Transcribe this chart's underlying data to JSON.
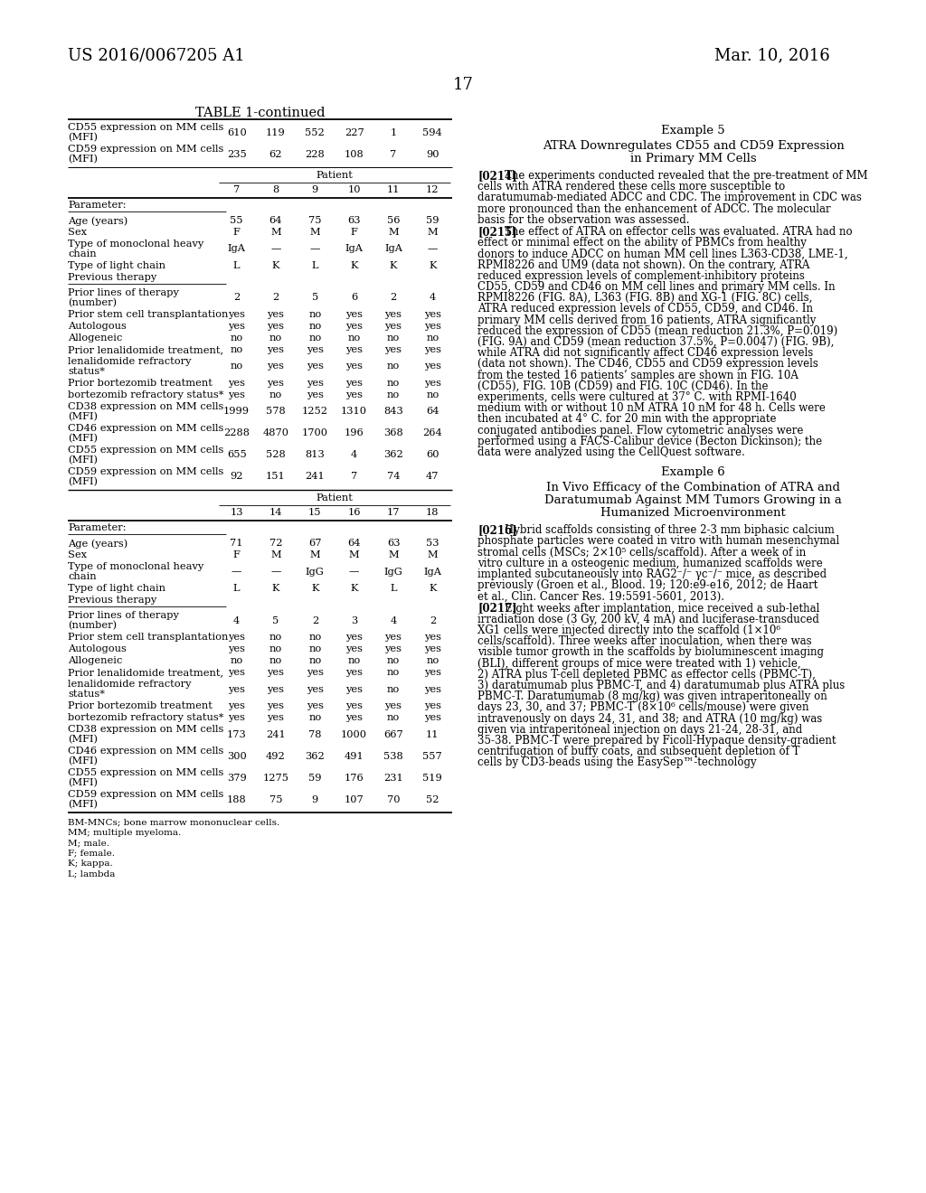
{
  "page_header_left": "US 2016/0067205 A1",
  "page_header_right": "Mar. 10, 2016",
  "page_number": "17",
  "table_title": "TABLE 1-continued",
  "table_top_rows": [
    {
      "param": "CD55 expression on MM cells\n(MFI)",
      "vals": [
        "610",
        "119",
        "552",
        "227",
        "1",
        "594"
      ]
    },
    {
      "param": "CD59 expression on MM cells\n(MFI)",
      "vals": [
        "235",
        "62",
        "228",
        "108",
        "7",
        "90"
      ]
    }
  ],
  "section1_patient_header": "Patient",
  "section1_col_headers": [
    "7",
    "8",
    "9",
    "10",
    "11",
    "12"
  ],
  "section1_rows": [
    {
      "param": "Parameter:",
      "vals": [
        "",
        "",
        "",
        "",
        "",
        ""
      ],
      "underline": true
    },
    {
      "param": "",
      "vals": [
        "",
        "",
        "",
        "",
        "",
        ""
      ],
      "spacer": true
    },
    {
      "param": "Age (years)",
      "vals": [
        "55",
        "64",
        "75",
        "63",
        "56",
        "59"
      ]
    },
    {
      "param": "Sex",
      "vals": [
        "F",
        "M",
        "M",
        "F",
        "M",
        "M"
      ]
    },
    {
      "param": "Type of monoclonal heavy\nchain",
      "vals": [
        "IgA",
        "—",
        "—",
        "IgA",
        "IgA",
        "—"
      ]
    },
    {
      "param": "Type of light chain",
      "vals": [
        "L",
        "K",
        "L",
        "K",
        "K",
        "K"
      ]
    },
    {
      "param": "Previous therapy",
      "vals": [
        "",
        "",
        "",
        "",
        "",
        ""
      ],
      "underline": true
    },
    {
      "param": "",
      "vals": [
        "",
        "",
        "",
        "",
        "",
        ""
      ],
      "spacer": true
    },
    {
      "param": "Prior lines of therapy\n(number)",
      "vals": [
        "2",
        "2",
        "5",
        "6",
        "2",
        "4"
      ]
    },
    {
      "param": "Prior stem cell transplantation",
      "vals": [
        "yes",
        "yes",
        "no",
        "yes",
        "yes",
        "yes"
      ]
    },
    {
      "param": "Autologous",
      "vals": [
        "yes",
        "yes",
        "no",
        "yes",
        "yes",
        "yes"
      ]
    },
    {
      "param": "Allogeneic",
      "vals": [
        "no",
        "no",
        "no",
        "no",
        "no",
        "no"
      ]
    },
    {
      "param": "Prior lenalidomide treatment,",
      "vals": [
        "no",
        "yes",
        "yes",
        "yes",
        "yes",
        "yes"
      ]
    },
    {
      "param": "lenalidomide refractory\nstatus*",
      "vals": [
        "no",
        "yes",
        "yes",
        "yes",
        "no",
        "yes"
      ]
    },
    {
      "param": "Prior bortezomib treatment",
      "vals": [
        "yes",
        "yes",
        "yes",
        "yes",
        "no",
        "yes"
      ]
    },
    {
      "param": "bortezomib refractory status*",
      "vals": [
        "yes",
        "no",
        "yes",
        "yes",
        "no",
        "no"
      ]
    },
    {
      "param": "CD38 expression on MM cells\n(MFI)",
      "vals": [
        "1999",
        "578",
        "1252",
        "1310",
        "843",
        "64"
      ]
    },
    {
      "param": "CD46 expression on MM cells\n(MFI)",
      "vals": [
        "2288",
        "4870",
        "1700",
        "196",
        "368",
        "264"
      ]
    },
    {
      "param": "CD55 expression on MM cells\n(MFI)",
      "vals": [
        "655",
        "528",
        "813",
        "4",
        "362",
        "60"
      ]
    },
    {
      "param": "CD59 expression on MM cells\n(MFI)",
      "vals": [
        "92",
        "151",
        "241",
        "7",
        "74",
        "47"
      ]
    }
  ],
  "section2_patient_header": "Patient",
  "section2_col_headers": [
    "13",
    "14",
    "15",
    "16",
    "17",
    "18"
  ],
  "section2_rows": [
    {
      "param": "Parameter:",
      "vals": [
        "",
        "",
        "",
        "",
        "",
        ""
      ],
      "underline": true
    },
    {
      "param": "",
      "vals": [
        "",
        "",
        "",
        "",
        "",
        ""
      ],
      "spacer": true
    },
    {
      "param": "Age (years)",
      "vals": [
        "71",
        "72",
        "67",
        "64",
        "63",
        "53"
      ]
    },
    {
      "param": "Sex",
      "vals": [
        "F",
        "M",
        "M",
        "M",
        "M",
        "M"
      ]
    },
    {
      "param": "Type of monoclonal heavy\nchain",
      "vals": [
        "—",
        "—",
        "IgG",
        "—",
        "IgG",
        "IgA"
      ]
    },
    {
      "param": "Type of light chain",
      "vals": [
        "L",
        "K",
        "K",
        "K",
        "L",
        "K"
      ]
    },
    {
      "param": "Previous therapy",
      "vals": [
        "",
        "",
        "",
        "",
        "",
        ""
      ],
      "underline": true
    },
    {
      "param": "",
      "vals": [
        "",
        "",
        "",
        "",
        "",
        ""
      ],
      "spacer": true
    },
    {
      "param": "Prior lines of therapy\n(number)",
      "vals": [
        "4",
        "5",
        "2",
        "3",
        "4",
        "2"
      ]
    },
    {
      "param": "Prior stem cell transplantation",
      "vals": [
        "yes",
        "no",
        "no",
        "yes",
        "yes",
        "yes"
      ]
    },
    {
      "param": "Autologous",
      "vals": [
        "yes",
        "no",
        "no",
        "yes",
        "yes",
        "yes"
      ]
    },
    {
      "param": "Allogeneic",
      "vals": [
        "no",
        "no",
        "no",
        "no",
        "no",
        "no"
      ]
    },
    {
      "param": "Prior lenalidomide treatment,",
      "vals": [
        "yes",
        "yes",
        "yes",
        "yes",
        "no",
        "yes"
      ]
    },
    {
      "param": "lenalidomide refractory\nstatus*",
      "vals": [
        "yes",
        "yes",
        "yes",
        "yes",
        "no",
        "yes"
      ]
    },
    {
      "param": "Prior bortezomib treatment",
      "vals": [
        "yes",
        "yes",
        "yes",
        "yes",
        "yes",
        "yes"
      ]
    },
    {
      "param": "bortezomib refractory status*",
      "vals": [
        "yes",
        "yes",
        "no",
        "yes",
        "no",
        "yes"
      ]
    },
    {
      "param": "CD38 expression on MM cells\n(MFI)",
      "vals": [
        "173",
        "241",
        "78",
        "1000",
        "667",
        "11"
      ]
    },
    {
      "param": "CD46 expression on MM cells\n(MFI)",
      "vals": [
        "300",
        "492",
        "362",
        "491",
        "538",
        "557"
      ]
    },
    {
      "param": "CD55 expression on MM cells\n(MFI)",
      "vals": [
        "379",
        "1275",
        "59",
        "176",
        "231",
        "519"
      ]
    },
    {
      "param": "CD59 expression on MM cells\n(MFI)",
      "vals": [
        "188",
        "75",
        "9",
        "107",
        "70",
        "52"
      ]
    }
  ],
  "footnotes": [
    "BM-MNCs; bone marrow mononuclear cells.",
    "MM; multiple myeloma.",
    "M; male.",
    "F; female.",
    "K; kappa.",
    "L; lambda"
  ],
  "right_title": "Example 5",
  "right_subtitle": "ATRA Downregulates CD55 and CD59 Expression\nin Primary MM Cells",
  "para0214_tag": "[0214]",
  "para0214_text": "The experiments conducted revealed that the pre-treatment of MM cells with ATRA rendered these cells more susceptible to daratumumab-mediated ADCC and CDC. The improvement in CDC was more pronounced than the enhancement of ADCC. The molecular basis for the observation was assessed.",
  "para0215_tag": "[0215]",
  "para0215_text": "The effect of ATRA on effector cells was evaluated. ATRA had no effect or minimal effect on the ability of PBMCs from healthy donors to induce ADCC on human MM cell lines L363-CD38, LME-1, RPMI8226 and UM9 (data not shown). On the contrary, ATRA reduced expression levels of complement-inhibitory proteins CD55, CD59 and CD46 on MM cell lines and primary MM cells. In RPMI8226 (FIG. 8A), L363 (FIG. 8B) and XG-1 (FIG. 8C) cells, ATRA reduced expression levels of CD55, CD59, and CD46. In primary MM cells derived from 16 patients, ATRA significantly reduced the expression of CD55 (mean reduction 21.3%, P=0.019) (FIG. 9A) and CD59 (mean reduction 37.5%, P=0.0047) (FIG. 9B), while ATRA did not significantly affect CD46 expression levels (data not shown). The CD46, CD55 and CD59 expression levels from the tested 16 patients’ samples are shown in FIG. 10A (CD55), FIG. 10B (CD59) and FIG. 10C (CD46). In the experiments, cells were cultured at 37° C. with RPMI-1640 medium with or without 10 nM ATRA 10 nM for 48 h. Cells were then incubated at 4° C. for 20 min with the appropriate conjugated antibodies panel. Flow cytometric analyses were performed using a FACS-Calibur device (Becton Dickinson); the data were analyzed using the CellQuest software.",
  "right_example6_title": "Example 6",
  "right_example6_subtitle": "In Vivo Efficacy of the Combination of ATRA and\nDaratumumab Against MM Tumors Growing in a\nHumanized Microenvironment",
  "para0216_tag": "[0216]",
  "para0216_text": "Hybrid scaffolds consisting of three 2-3 mm biphasic calcium phosphate particles were coated in vitro with human mesenchymal stromal cells (MSCs; 2×10⁵ cells/scaffold). After a week of in vitro culture in a osteogenic medium, humanized scaffolds were implanted subcutaneously into RAG2⁻/⁻ γc⁻/⁻ mice, as described previously (Groen et al., Blood. 19; 120:e9-e16, 2012; de Haart et al., Clin. Cancer Res. 19:5591-5601, 2013).",
  "para0217_tag": "[0217]",
  "para0217_text": "Eight weeks after implantation, mice received a sub-lethal irradiation dose (3 Gy, 200 kV, 4 mA) and luciferase-transduced XG1 cells were injected directly into the scaffold (1×10⁶ cells/scaffold). Three weeks after inoculation, when there was visible tumor growth in the scaffolds by bioluminescent imaging (BLI), different groups of mice were treated with 1) vehicle, 2) ATRA plus T-cell depleted PBMC as effector cells (PBMC-T), 3) daratumumab plus PBMC-T, and 4) daratumumab plus ATRA plus PBMC-T. Daratumumab (8 mg/kg) was given intraperitoneally on days 23, 30, and 37; PBMC-T (8×10⁶ cells/mouse) were given intravenously on days 24, 31, and 38; and ATRA (10 mg/kg) was given via intraperitoneal injection on days 21-24, 28-31, and 35-38. PBMC-T were prepared by Ficoll-Hypaque density-gradient centrifugation of buffy coats, and subsequent depletion of T cells by CD3-beads using the EasySep™-technology"
}
